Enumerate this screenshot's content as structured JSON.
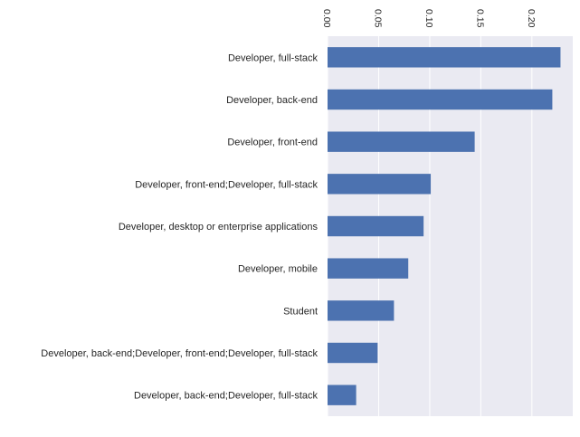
{
  "chart_data": {
    "type": "bar",
    "orientation": "horizontal",
    "categories": [
      "Developer, full-stack",
      "Developer, back-end",
      "Developer, front-end",
      "Developer, front-end;Developer, full-stack",
      "Developer, desktop or enterprise applications",
      "Developer, mobile",
      "Student",
      "Developer, back-end;Developer, front-end;Developer, full-stack",
      "Developer, back-end;Developer, full-stack"
    ],
    "values": [
      0.228,
      0.22,
      0.144,
      0.101,
      0.094,
      0.079,
      0.065,
      0.049,
      0.028
    ],
    "xlim": [
      0,
      0.24
    ],
    "xticks": [
      "0.00",
      "0.05",
      "0.10",
      "0.15",
      "0.20"
    ],
    "x_tick_position": "top",
    "x_tick_rotation": 90,
    "grid": true,
    "colors": {
      "bar": "#4c72b0",
      "plot_background": "#eaeaf2",
      "grid": "#ffffff"
    }
  }
}
